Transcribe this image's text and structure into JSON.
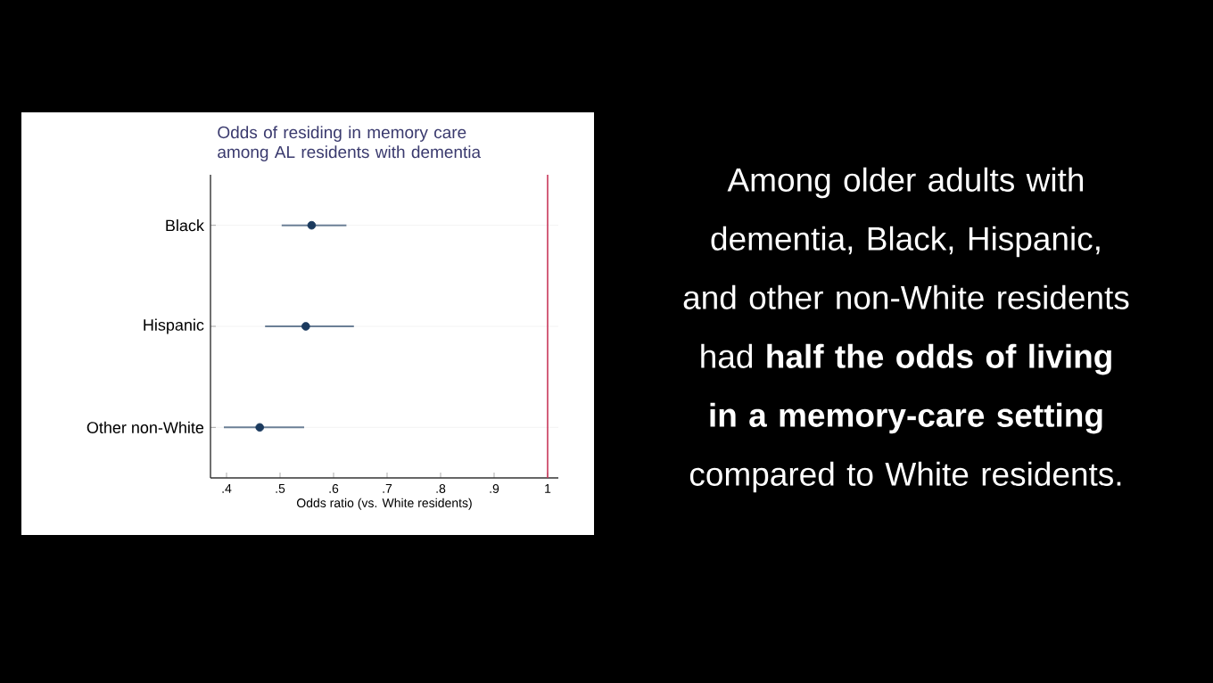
{
  "chart_data": {
    "type": "scatter",
    "orientation": "horizontal",
    "title": "Odds of residing in memory care among AL residents with dementia",
    "xlabel": "Odds ratio (vs. White residents)",
    "categories": [
      "Black",
      "Hispanic",
      "Other non-White"
    ],
    "series": [
      {
        "color": "#1b3a5e",
        "values": [
          0.559,
          0.548,
          0.462
        ],
        "errors": [
          [
            0.503,
            0.624
          ],
          [
            0.472,
            0.638
          ],
          [
            0.395,
            0.545
          ]
        ]
      }
    ],
    "xlim": [
      0.37,
      1.02
    ],
    "xticks": [
      {
        "value": 0.4,
        "label": ".4"
      },
      {
        "value": 0.5,
        "label": ".5"
      },
      {
        "value": 0.6,
        "label": ".6"
      },
      {
        "value": 0.7,
        "label": ".7"
      },
      {
        "value": 0.8,
        "label": ".8"
      },
      {
        "value": 0.9,
        "label": ".9"
      },
      1
    ],
    "ref_lines": [
      {
        "axis": "x",
        "value": 1,
        "color": "#c8385a"
      }
    ],
    "grid": "y",
    "marker": "circle",
    "annotations": [
      "Among older adults with dementia, Black, Hispanic, and other non-White residents had **half the odds of living in a memory-care setting** compared to White residents."
    ]
  }
}
